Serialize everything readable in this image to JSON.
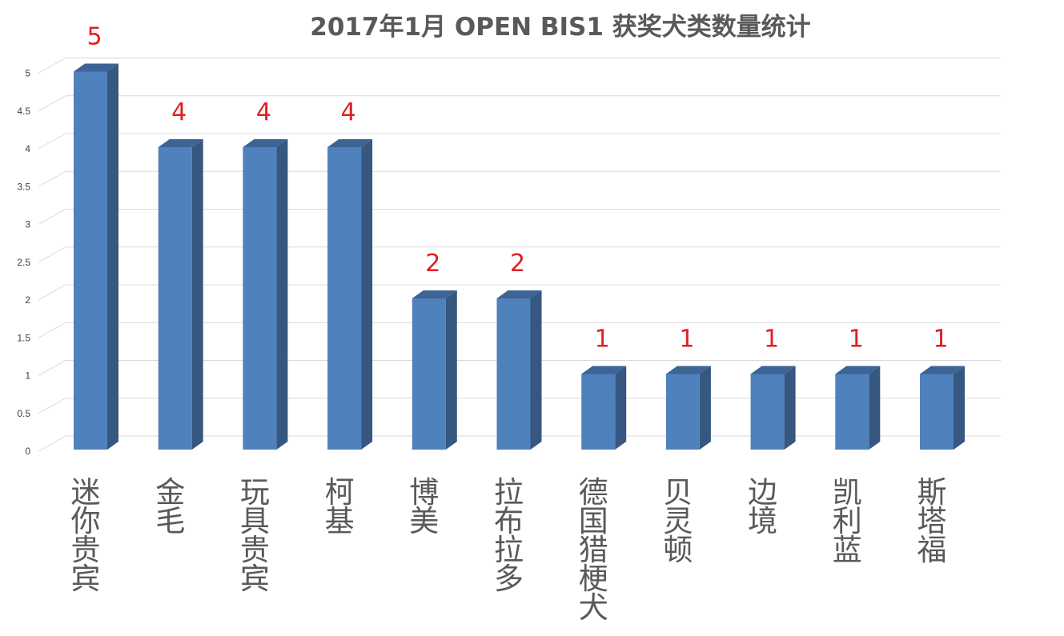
{
  "chart_data": {
    "type": "bar",
    "title": "2017年1月 OPEN BIS1 获奖犬类数量统计",
    "categories": [
      "迷你贵宾",
      "金毛",
      "玩具贵宾",
      "柯基",
      "博美",
      "拉布拉多",
      "德国猎梗犬",
      "贝灵顿",
      "边境",
      "凯利蓝",
      "斯塔福"
    ],
    "values": [
      5,
      4,
      4,
      4,
      2,
      2,
      1,
      1,
      1,
      1,
      1
    ],
    "data_labels": [
      "5",
      "4",
      "4",
      "4",
      "2",
      "2",
      "1",
      "1",
      "1",
      "1",
      "1"
    ],
    "yticks": [
      "0",
      "0.5",
      "1",
      "1.5",
      "2",
      "2.5",
      "3",
      "3.5",
      "4",
      "4.5",
      "5"
    ],
    "ylim": [
      0,
      5
    ],
    "xlabel": "",
    "ylabel": "",
    "grid": true,
    "legend": "none",
    "bar_style": "3d-column",
    "colors": {
      "bar_front": "#4f81bd",
      "bar_side": "#36577f",
      "bar_top": "#3c6494",
      "data_label": "#e02020",
      "title": "#595959",
      "category_text": "#595959",
      "gridline": "#d9d9d9"
    }
  }
}
